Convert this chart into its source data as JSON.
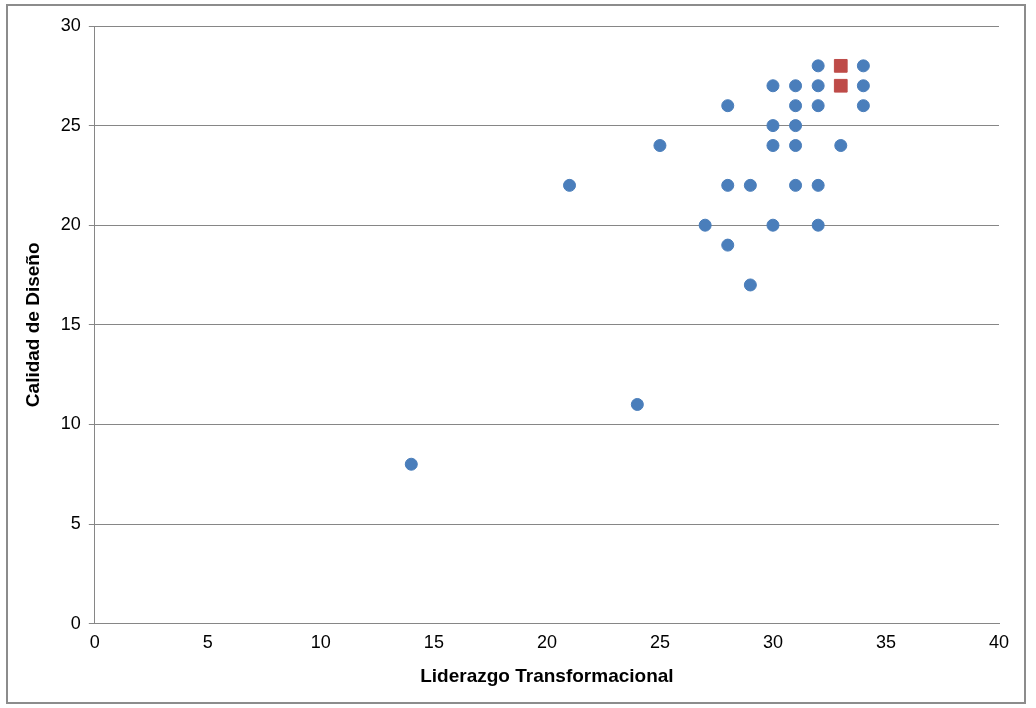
{
  "chart_data": {
    "type": "scatter",
    "xlabel": "Liderazgo Transformacional",
    "ylabel": "Calidad de Diseño",
    "xlim": [
      0,
      40
    ],
    "xticks": [
      0,
      5,
      10,
      15,
      20,
      25,
      30,
      35,
      40
    ],
    "ylim": [
      0,
      30
    ],
    "yticks": [
      0,
      5,
      10,
      15,
      20,
      25,
      30
    ],
    "grid": "y",
    "legend": false,
    "series": [
      {
        "color": "#4a7ebb",
        "marker": "circle",
        "x": [
          14,
          21,
          24,
          25,
          27,
          28,
          28,
          28,
          29,
          29,
          30,
          30,
          30,
          30,
          31,
          31,
          31,
          31,
          31,
          32,
          32,
          32,
          32,
          32,
          33,
          34,
          34,
          34
        ],
        "values": [
          8,
          22,
          11,
          24,
          20,
          26,
          22,
          19,
          22,
          17,
          27,
          25,
          24,
          20,
          27,
          26,
          25,
          24,
          22,
          28,
          27,
          26,
          22,
          20,
          24,
          28,
          27,
          26
        ]
      },
      {
        "color": "#be4b48",
        "marker": "square",
        "x": [
          33,
          33
        ],
        "values": [
          28,
          27
        ]
      }
    ]
  }
}
